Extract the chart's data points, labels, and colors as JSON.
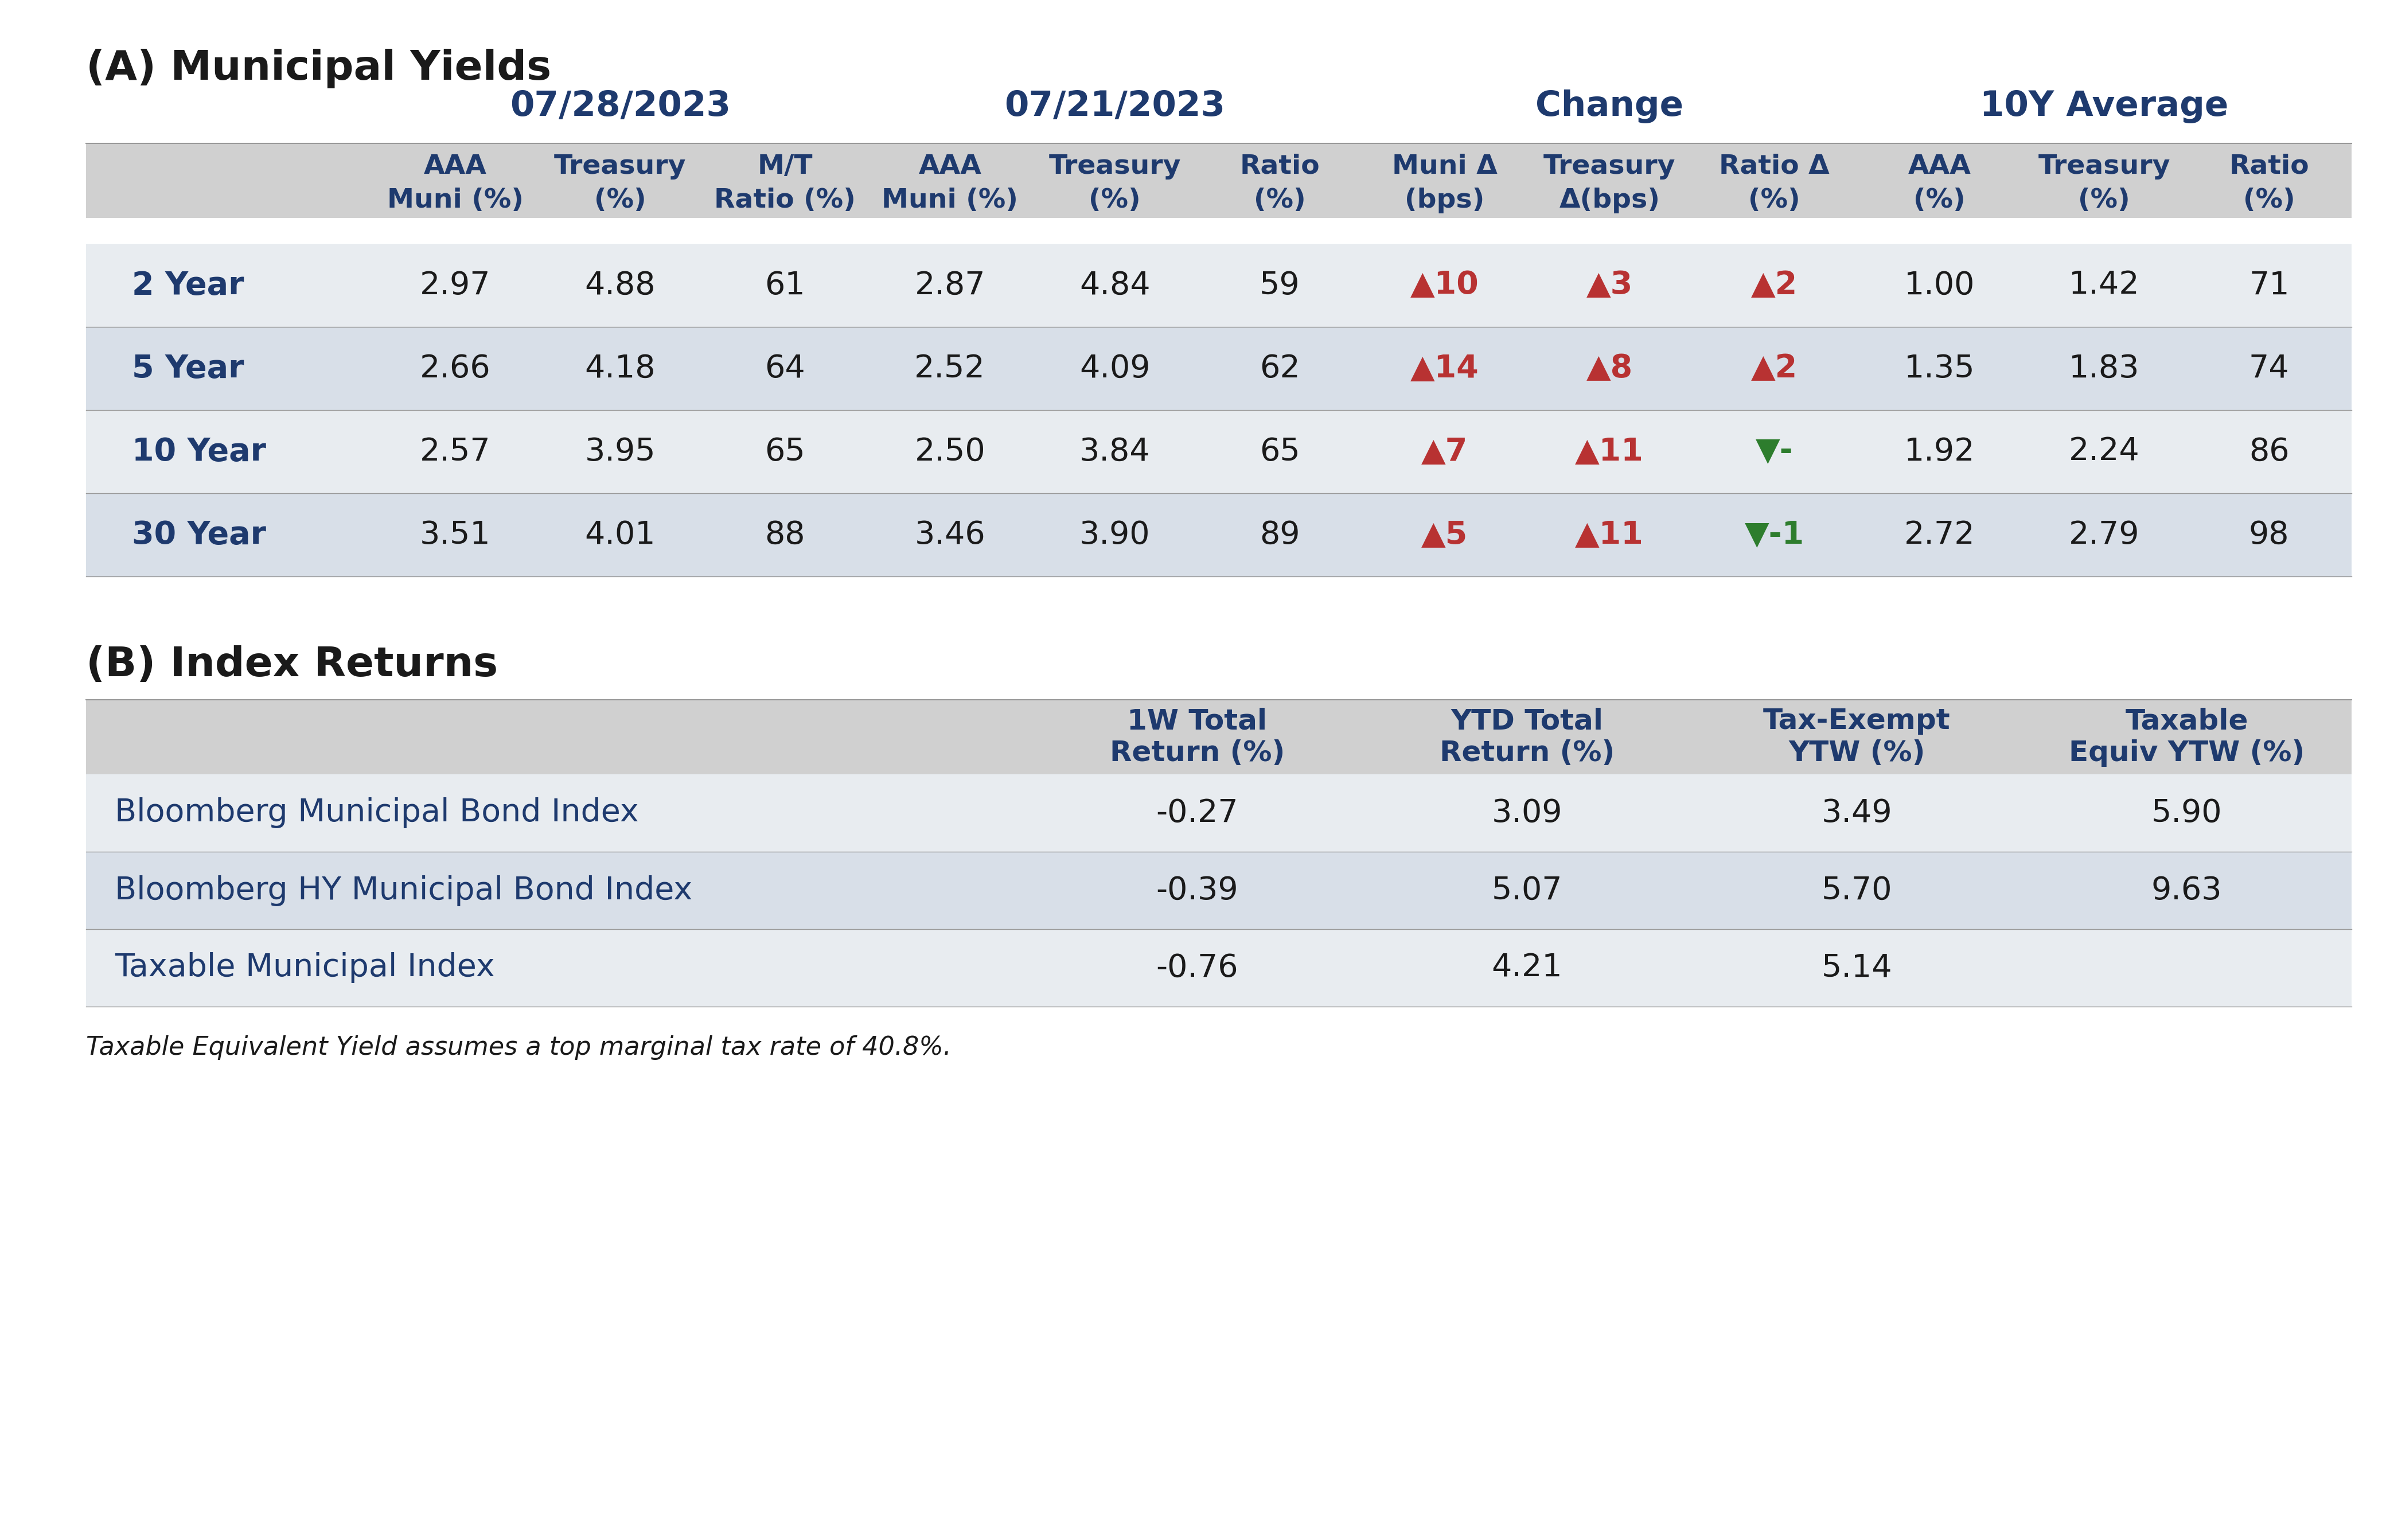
{
  "title_a": "(A) Municipal Yields",
  "title_b": "(B) Index Returns",
  "footnote": "Taxable Equivalent Yield assumes a top marginal tax rate of 40.8%.",
  "bg_color": "#ffffff",
  "header_bg": "#d0d0d0",
  "row_bg_odd": "#e8ecf0",
  "row_bg_even": "#d8dfe8",
  "divider_color": "#999999",
  "blue_dark": "#1e3a6e",
  "black": "#1a1a1a",
  "red": "#b83232",
  "green": "#2d7d2d",
  "date1": "07/28/2023",
  "date2": "07/21/2023",
  "date3": "Change",
  "date4": "10Y Average",
  "col_headers_line1": [
    "AAA",
    "Treasury",
    "M/T",
    "AAA",
    "Treasury",
    "Ratio",
    "Muni Δ",
    "Treasury",
    "Ratio Δ",
    "AAA",
    "Treasury",
    "Ratio"
  ],
  "col_headers_line2": [
    "Muni (%)",
    "(%)",
    "Ratio (%)",
    "Muni (%)",
    "(%)",
    "(%)",
    "(bps)",
    "Δ(bps)",
    "(%)",
    "(%)",
    "(%)",
    "(%)"
  ],
  "row_labels": [
    "2 Year",
    "5 Year",
    "10 Year",
    "30 Year"
  ],
  "table_data": [
    [
      "2.97",
      "4.88",
      "61",
      "2.87",
      "4.84",
      "59",
      "▲10",
      "▲3",
      "▲2",
      "1.00",
      "1.42",
      "71"
    ],
    [
      "2.66",
      "4.18",
      "64",
      "2.52",
      "4.09",
      "62",
      "▲14",
      "▲8",
      "▲2",
      "1.35",
      "1.83",
      "74"
    ],
    [
      "2.57",
      "3.95",
      "65",
      "2.50",
      "3.84",
      "65",
      "▲7",
      "▲11",
      "▼-",
      "1.92",
      "2.24",
      "86"
    ],
    [
      "3.51",
      "4.01",
      "88",
      "3.46",
      "3.90",
      "89",
      "▲5",
      "▲11",
      "▼-1",
      "2.72",
      "2.79",
      "98"
    ]
  ],
  "change_col_colors": [
    [
      "red",
      "red",
      "red"
    ],
    [
      "red",
      "red",
      "red"
    ],
    [
      "red",
      "red",
      "green"
    ],
    [
      "red",
      "red",
      "green"
    ]
  ],
  "index_headers": [
    "1W Total\nReturn (%)",
    "YTD Total\nReturn (%)",
    "Tax-Exempt\nYTW (%)",
    "Taxable\nEquiv YTW (%)"
  ],
  "index_rows": [
    [
      "Bloomberg Municipal Bond Index",
      "-0.27",
      "3.09",
      "3.49",
      "5.90"
    ],
    [
      "Bloomberg HY Municipal Bond Index",
      "-0.39",
      "5.07",
      "5.70",
      "9.63"
    ],
    [
      "Taxable Municipal Index",
      "-0.76",
      "4.21",
      "5.14",
      ""
    ]
  ]
}
